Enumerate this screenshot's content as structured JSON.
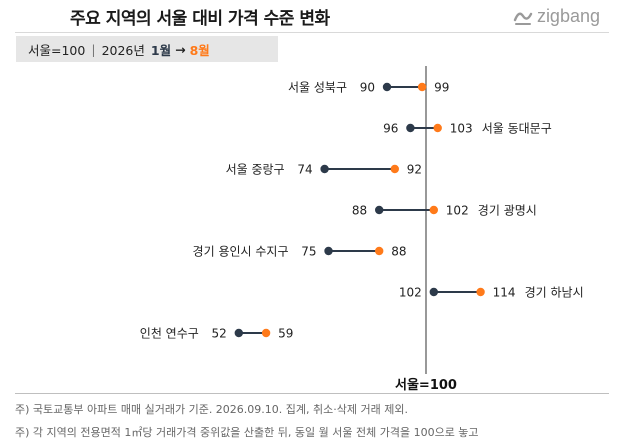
{
  "title": "주요 지역의 서울 대비 가격 수준 변화",
  "brand": {
    "name": "zigbang",
    "icon": "zigbang-logo-icon"
  },
  "legend": {
    "base": "서울=100",
    "year": "2026년",
    "start": "1월",
    "arrow": "→",
    "end": "8월"
  },
  "colors": {
    "start": "#2d3a4a",
    "end": "#ff7a1a",
    "line": "#2d3a4a"
  },
  "footnotes": [
    "주) 국토교통부 아파트 매매 실거래가 기준. 2026.09.10. 집계, 취소·삭제 거래 제외.",
    "주) 각 지역의 전용면적 1㎡당 거래가격 중위값을 산출한 뒤, 동일 월 서울 전체 가격을 100으로 놓고"
  ],
  "chart_data": {
    "type": "dumbbell",
    "title": "주요 지역의 서울 대비 가격 수준 변화",
    "reference": {
      "value": 100,
      "label": "서울=100"
    },
    "series": [
      {
        "name": "1월",
        "values": [
          90,
          96,
          74,
          88,
          75,
          102,
          52
        ]
      },
      {
        "name": "8월",
        "values": [
          99,
          103,
          92,
          102,
          88,
          114,
          59
        ]
      }
    ],
    "categories": [
      "서울 성북구",
      "서울 동대문구",
      "서울 중랑구",
      "경기 광명시",
      "경기 용인시 수지구",
      "경기 하남시",
      "인천 연수구"
    ],
    "rows": [
      {
        "label": "서울 성북구",
        "start": 90,
        "end": 99,
        "label_side": "left"
      },
      {
        "label": "서울 동대문구",
        "start": 96,
        "end": 103,
        "label_side": "right"
      },
      {
        "label": "서울 중랑구",
        "start": 74,
        "end": 92,
        "label_side": "left"
      },
      {
        "label": "경기 광명시",
        "start": 88,
        "end": 102,
        "label_side": "right"
      },
      {
        "label": "경기 용인시 수지구",
        "start": 75,
        "end": 88,
        "label_side": "left"
      },
      {
        "label": "경기 하남시",
        "start": 102,
        "end": 114,
        "label_side": "right"
      },
      {
        "label": "인천 연수구",
        "start": 52,
        "end": 59,
        "label_side": "left"
      }
    ]
  }
}
